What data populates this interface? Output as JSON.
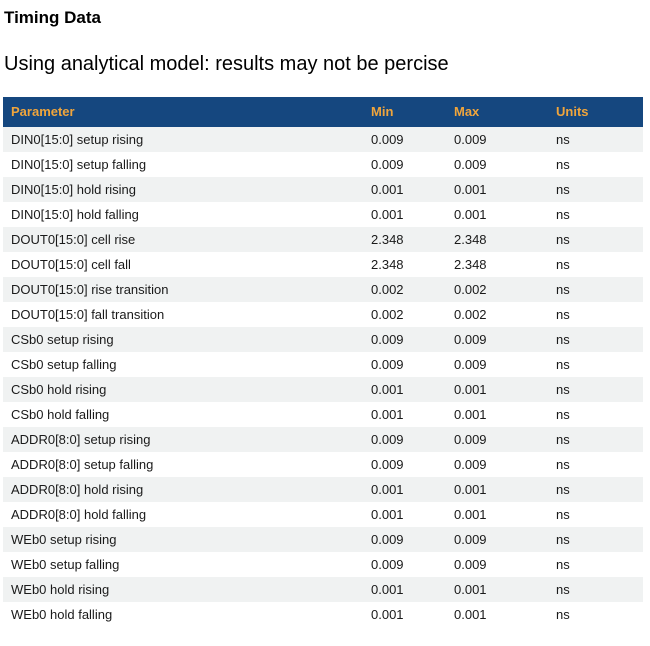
{
  "page": {
    "title": "Timing Data",
    "subtitle": "Using analytical model: results may not be percise"
  },
  "table": {
    "columns": [
      "Parameter",
      "Min",
      "Max",
      "Units"
    ],
    "rows": [
      {
        "parameter": "DIN0[15:0] setup rising",
        "min": "0.009",
        "max": "0.009",
        "units": "ns"
      },
      {
        "parameter": "DIN0[15:0] setup falling",
        "min": "0.009",
        "max": "0.009",
        "units": "ns"
      },
      {
        "parameter": "DIN0[15:0] hold rising",
        "min": "0.001",
        "max": "0.001",
        "units": "ns"
      },
      {
        "parameter": "DIN0[15:0] hold falling",
        "min": "0.001",
        "max": "0.001",
        "units": "ns"
      },
      {
        "parameter": "DOUT0[15:0] cell rise",
        "min": "2.348",
        "max": "2.348",
        "units": "ns"
      },
      {
        "parameter": "DOUT0[15:0] cell fall",
        "min": "2.348",
        "max": "2.348",
        "units": "ns"
      },
      {
        "parameter": "DOUT0[15:0] rise transition",
        "min": "0.002",
        "max": "0.002",
        "units": "ns"
      },
      {
        "parameter": "DOUT0[15:0] fall transition",
        "min": "0.002",
        "max": "0.002",
        "units": "ns"
      },
      {
        "parameter": "CSb0 setup rising",
        "min": "0.009",
        "max": "0.009",
        "units": "ns"
      },
      {
        "parameter": "CSb0 setup falling",
        "min": "0.009",
        "max": "0.009",
        "units": "ns"
      },
      {
        "parameter": "CSb0 hold rising",
        "min": "0.001",
        "max": "0.001",
        "units": "ns"
      },
      {
        "parameter": "CSb0 hold falling",
        "min": "0.001",
        "max": "0.001",
        "units": "ns"
      },
      {
        "parameter": "ADDR0[8:0] setup rising",
        "min": "0.009",
        "max": "0.009",
        "units": "ns"
      },
      {
        "parameter": "ADDR0[8:0] setup falling",
        "min": "0.009",
        "max": "0.009",
        "units": "ns"
      },
      {
        "parameter": "ADDR0[8:0] hold rising",
        "min": "0.001",
        "max": "0.001",
        "units": "ns"
      },
      {
        "parameter": "ADDR0[8:0] hold falling",
        "min": "0.001",
        "max": "0.001",
        "units": "ns"
      },
      {
        "parameter": "WEb0 setup rising",
        "min": "0.009",
        "max": "0.009",
        "units": "ns"
      },
      {
        "parameter": "WEb0 setup falling",
        "min": "0.009",
        "max": "0.009",
        "units": "ns"
      },
      {
        "parameter": "WEb0 hold rising",
        "min": "0.001",
        "max": "0.001",
        "units": "ns"
      },
      {
        "parameter": "WEb0 hold falling",
        "min": "0.001",
        "max": "0.001",
        "units": "ns"
      }
    ]
  },
  "colors": {
    "header_background": "#15477F",
    "header_text": "#F0A53C",
    "row_stripe": "#F0F2F2",
    "body_text": "#1A1A1A"
  }
}
